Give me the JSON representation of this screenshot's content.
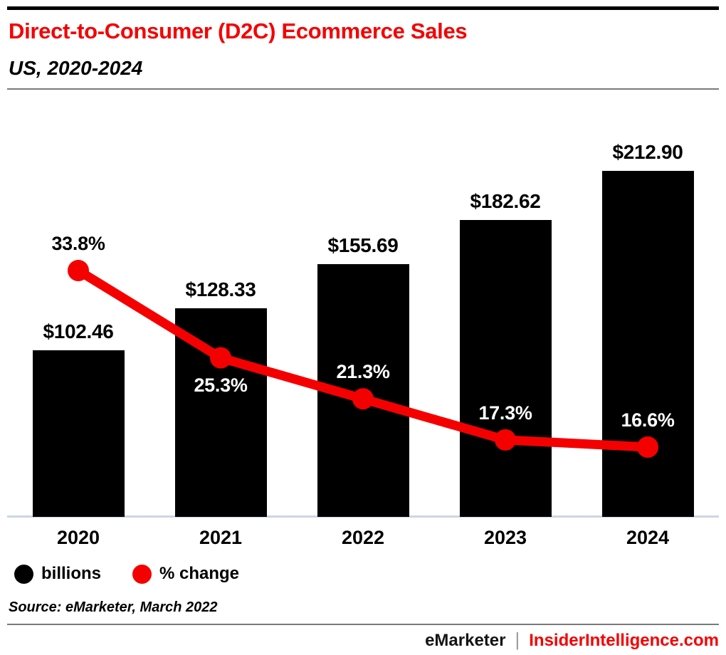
{
  "header": {
    "title": "Direct-to-Consumer (D2C) Ecommerce Sales",
    "subtitle": "US, 2020-2024"
  },
  "chart_data": {
    "type": "bar",
    "subtype": "bar+line combo",
    "title": "Direct-to-Consumer (D2C) Ecommerce Sales",
    "subtitle": "US, 2020-2024",
    "categories": [
      "2020",
      "2021",
      "2022",
      "2023",
      "2024"
    ],
    "series": [
      {
        "name": "billions",
        "type": "bar",
        "color": "#000000",
        "values": [
          102.46,
          128.33,
          155.69,
          182.62,
          212.9
        ],
        "labels": [
          "$102.46",
          "$128.33",
          "$155.69",
          "$182.62",
          "$212.90"
        ]
      },
      {
        "name": "% change",
        "type": "line",
        "color": "#f40000",
        "values": [
          33.8,
          25.3,
          21.3,
          17.3,
          16.6
        ],
        "labels": [
          "33.8%",
          "25.3%",
          "21.3%",
          "17.3%",
          "16.6%"
        ],
        "label_positions": [
          "above",
          "below",
          "above",
          "above",
          "above"
        ],
        "label_colors": [
          "#000000",
          "#ffffff",
          "#ffffff",
          "#ffffff",
          "#ffffff"
        ]
      }
    ],
    "xlabel": "",
    "ylabel": "",
    "grid": false,
    "legend_position": "bottom-left",
    "legend": [
      {
        "label": "billions",
        "color": "#000000"
      },
      {
        "label": "% change",
        "color": "#f40000"
      }
    ]
  },
  "source": "Source: eMarketer, March 2022",
  "footer": {
    "brand": "eMarketer",
    "separator": "|",
    "site": "InsiderIntelligence.com"
  },
  "colors": {
    "accent_red": "#f40000",
    "bar_black": "#000000",
    "axis_line": "#ccd6e3",
    "rule_gray": "#7a7a7a",
    "separator_gray": "#9b9b9b"
  }
}
